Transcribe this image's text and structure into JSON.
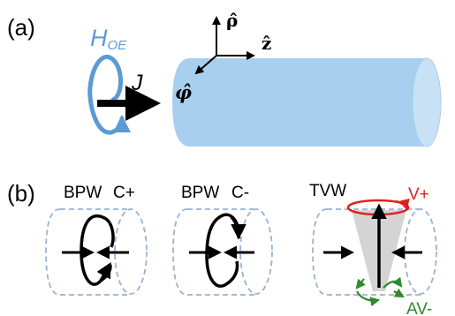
{
  "figure": {
    "panel_a": {
      "label": "(a)",
      "field_label_main": "H",
      "field_label_sub": "OE",
      "current_label": "J",
      "axes": {
        "rho": "ρ̂",
        "z": "ẑ",
        "phi": "φ̂"
      },
      "colors": {
        "field": "#5b9bd5",
        "nanowire": "#a9cfee",
        "nanowire_end": "#c9e1f5"
      }
    },
    "panel_b": {
      "label": "(b)",
      "walls": [
        {
          "type": "BPW",
          "chirality": "C+"
        },
        {
          "type": "BPW",
          "chirality": "C-"
        },
        {
          "type": "TVW",
          "vortex_label": "V+",
          "antivortex_label": "AV-"
        }
      ],
      "colors": {
        "outline": "#9ab3cf",
        "vortex": "#e02020",
        "antivortex": "#2e8b2e",
        "cone": "#cccccc"
      }
    }
  }
}
